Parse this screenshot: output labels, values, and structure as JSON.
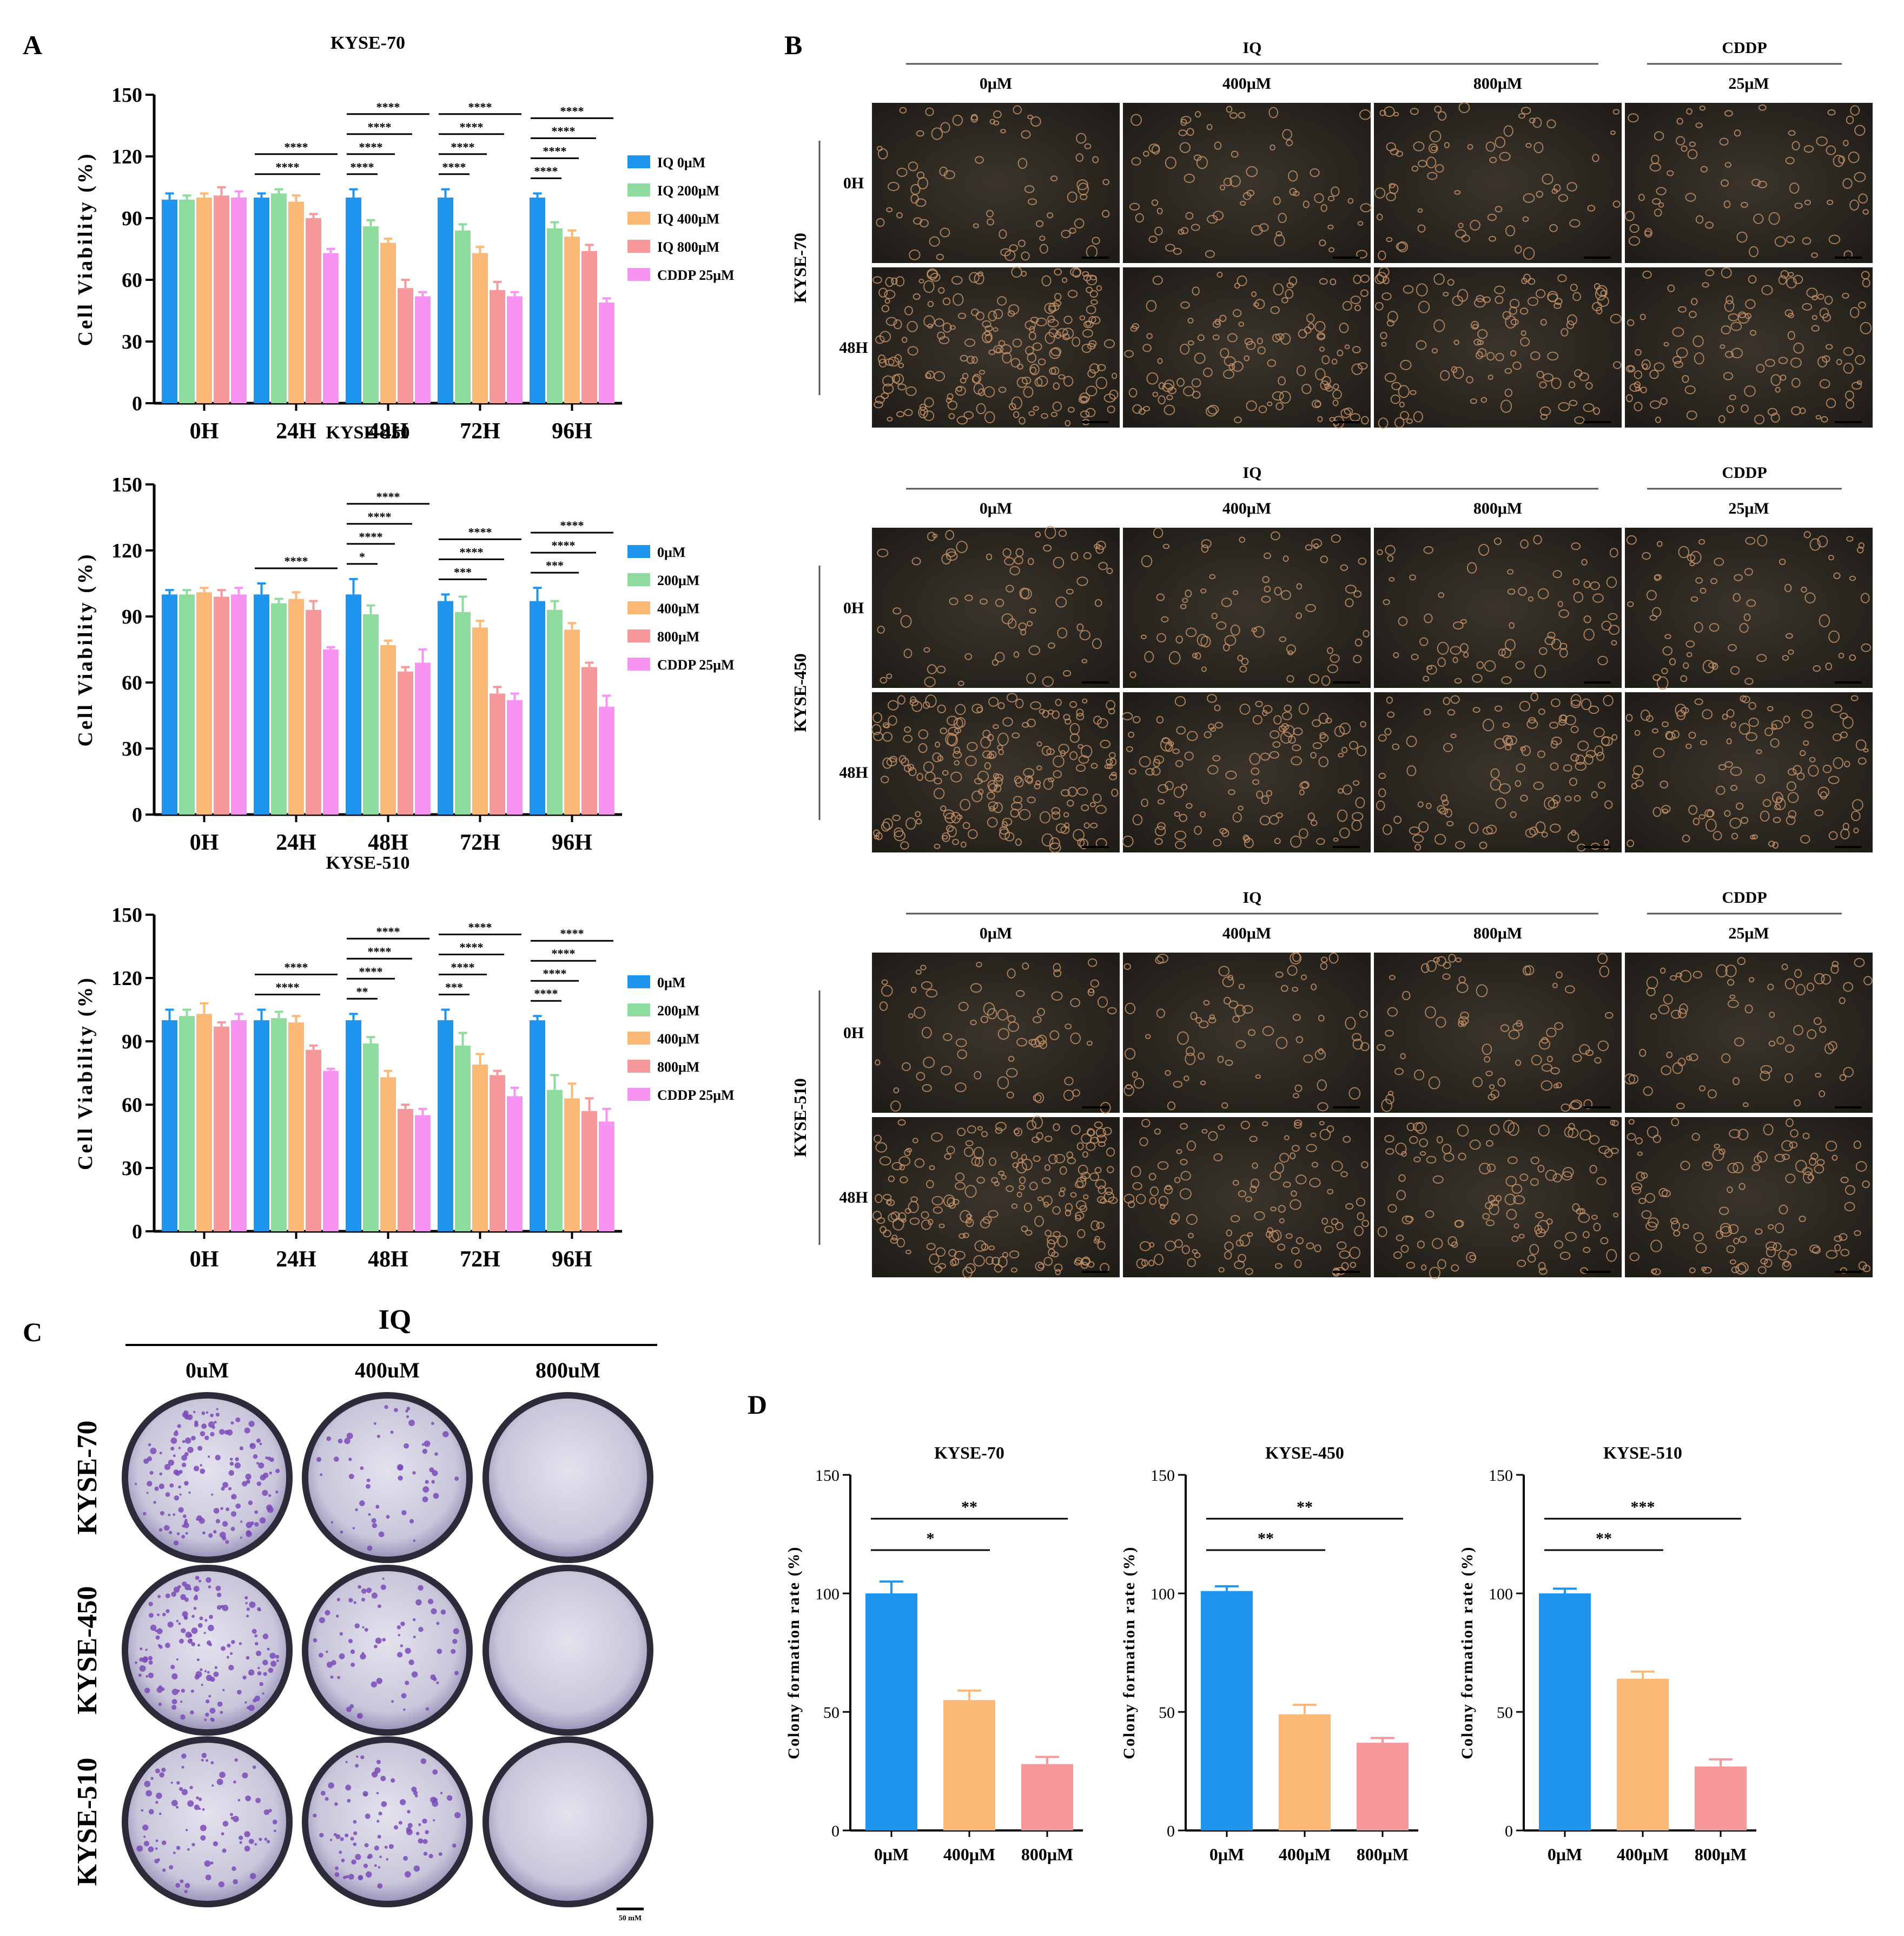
{
  "panel_letters": {
    "a": "A",
    "b": "B",
    "c": "C",
    "d": "D"
  },
  "colors": {
    "c0": "#1E96F0",
    "c200": "#8EDB9E",
    "c400": "#FBB978",
    "c800": "#F7999C",
    "cddp": "#F793F2",
    "micrograph_bg": "#2A2620",
    "cell_color": "#C8946A",
    "crystal_violet": "#7B4AB8"
  },
  "panel_b": {
    "group_iq": "IQ",
    "group_cddp": "CDDP",
    "conditions": [
      "0μM",
      "400μM",
      "800μM",
      "25μM"
    ],
    "times": [
      "0H",
      "48H"
    ],
    "cell_lines": [
      "KYSE-70",
      "KYSE-450",
      "KYSE-510"
    ]
  },
  "panel_c": {
    "title": "IQ",
    "columns": [
      "0uM",
      "400uM",
      "800uM"
    ],
    "rows": [
      "KYSE-70",
      "KYSE-450",
      "KYSE-510"
    ],
    "scale_bar_label": "50 mM",
    "colony_density": [
      [
        150,
        55,
        0
      ],
      [
        150,
        70,
        0
      ],
      [
        90,
        90,
        0
      ]
    ]
  },
  "chart_data": [
    {
      "type": "bar",
      "title": "KYSE-70",
      "xlabel": "",
      "ylabel": "Cell Viability (%)",
      "ylim": [
        0,
        150
      ],
      "yticks": [
        0,
        30,
        60,
        90,
        120,
        150
      ],
      "categories": [
        "0H",
        "24H",
        "48H",
        "72H",
        "96H"
      ],
      "legend_position": "right",
      "series": [
        {
          "name": "IQ 0μM",
          "values": [
            99,
            100,
            100,
            100,
            100
          ],
          "errors": [
            3,
            2,
            4,
            4,
            2
          ]
        },
        {
          "name": "IQ 200μM",
          "values": [
            99,
            102,
            86,
            84,
            85
          ],
          "errors": [
            2,
            2,
            3,
            3,
            3
          ]
        },
        {
          "name": "IQ 400μM",
          "values": [
            100,
            98,
            78,
            73,
            81
          ],
          "errors": [
            2,
            3,
            2,
            3,
            3
          ]
        },
        {
          "name": "IQ 800μM",
          "values": [
            101,
            90,
            56,
            55,
            74
          ],
          "errors": [
            4,
            2,
            4,
            4,
            3
          ]
        },
        {
          "name": "CDDP 25μM",
          "values": [
            100,
            73,
            52,
            52,
            49
          ],
          "errors": [
            3,
            2,
            2,
            2,
            2
          ]
        }
      ],
      "significance": [
        {
          "cat": 1,
          "from": 0,
          "to": 3,
          "label": "****"
        },
        {
          "cat": 1,
          "from": 0,
          "to": 4,
          "label": "****"
        },
        {
          "cat": 2,
          "from": 0,
          "to": 1,
          "label": "****"
        },
        {
          "cat": 2,
          "from": 0,
          "to": 2,
          "label": "****"
        },
        {
          "cat": 2,
          "from": 0,
          "to": 3,
          "label": "****"
        },
        {
          "cat": 2,
          "from": 0,
          "to": 4,
          "label": "****"
        },
        {
          "cat": 3,
          "from": 0,
          "to": 1,
          "label": "****"
        },
        {
          "cat": 3,
          "from": 0,
          "to": 2,
          "label": "****"
        },
        {
          "cat": 3,
          "from": 0,
          "to": 3,
          "label": "****"
        },
        {
          "cat": 3,
          "from": 0,
          "to": 4,
          "label": "****"
        },
        {
          "cat": 4,
          "from": 0,
          "to": 1,
          "label": "****"
        },
        {
          "cat": 4,
          "from": 0,
          "to": 2,
          "label": "****"
        },
        {
          "cat": 4,
          "from": 0,
          "to": 3,
          "label": "****"
        },
        {
          "cat": 4,
          "from": 0,
          "to": 4,
          "label": "****"
        }
      ]
    },
    {
      "type": "bar",
      "title": "KYSE-450",
      "xlabel": "",
      "ylabel": "Cell Viability (%)",
      "ylim": [
        0,
        150
      ],
      "yticks": [
        0,
        30,
        60,
        90,
        120,
        150
      ],
      "categories": [
        "0H",
        "24H",
        "48H",
        "72H",
        "96H"
      ],
      "legend_position": "right",
      "series": [
        {
          "name": "0μM",
          "values": [
            100,
            100,
            100,
            97,
            97
          ],
          "errors": [
            2,
            5,
            7,
            3,
            6
          ]
        },
        {
          "name": "200μM",
          "values": [
            100,
            96,
            91,
            92,
            93
          ],
          "errors": [
            2,
            2,
            4,
            7,
            4
          ]
        },
        {
          "name": "400μM",
          "values": [
            101,
            98,
            77,
            85,
            84
          ],
          "errors": [
            2,
            3,
            2,
            3,
            3
          ]
        },
        {
          "name": "800μM",
          "values": [
            99,
            93,
            65,
            55,
            67
          ],
          "errors": [
            3,
            4,
            2,
            3,
            2
          ]
        },
        {
          "name": "CDDP 25μM",
          "values": [
            100,
            75,
            69,
            52,
            49
          ],
          "errors": [
            3,
            1,
            6,
            3,
            5
          ]
        }
      ],
      "significance": [
        {
          "cat": 1,
          "from": 0,
          "to": 4,
          "label": "****"
        },
        {
          "cat": 2,
          "from": 0,
          "to": 1,
          "label": "*"
        },
        {
          "cat": 2,
          "from": 0,
          "to": 2,
          "label": "****"
        },
        {
          "cat": 2,
          "from": 0,
          "to": 3,
          "label": "****"
        },
        {
          "cat": 2,
          "from": 0,
          "to": 4,
          "label": "****"
        },
        {
          "cat": 3,
          "from": 0,
          "to": 2,
          "label": "***"
        },
        {
          "cat": 3,
          "from": 0,
          "to": 3,
          "label": "****"
        },
        {
          "cat": 3,
          "from": 0,
          "to": 4,
          "label": "****"
        },
        {
          "cat": 4,
          "from": 0,
          "to": 2,
          "label": "***"
        },
        {
          "cat": 4,
          "from": 0,
          "to": 3,
          "label": "****"
        },
        {
          "cat": 4,
          "from": 0,
          "to": 4,
          "label": "****"
        }
      ]
    },
    {
      "type": "bar",
      "title": "KYSE-510",
      "xlabel": "",
      "ylabel": "Cell Viability (%)",
      "ylim": [
        0,
        150
      ],
      "yticks": [
        0,
        30,
        60,
        90,
        120,
        150
      ],
      "categories": [
        "0H",
        "24H",
        "48H",
        "72H",
        "96H"
      ],
      "legend_position": "right",
      "series": [
        {
          "name": "0μM",
          "values": [
            100,
            100,
            100,
            100,
            100
          ],
          "errors": [
            5,
            5,
            3,
            5,
            2
          ]
        },
        {
          "name": "200μM",
          "values": [
            102,
            101,
            89,
            88,
            67
          ],
          "errors": [
            3,
            3,
            3,
            6,
            7
          ]
        },
        {
          "name": "400μM",
          "values": [
            103,
            99,
            73,
            79,
            63
          ],
          "errors": [
            5,
            3,
            3,
            5,
            7
          ]
        },
        {
          "name": "800μM",
          "values": [
            97,
            86,
            58,
            74,
            57
          ],
          "errors": [
            2,
            2,
            2,
            2,
            6
          ]
        },
        {
          "name": "CDDP 25μM",
          "values": [
            100,
            76,
            55,
            64,
            52
          ],
          "errors": [
            3,
            1,
            3,
            4,
            6
          ]
        }
      ],
      "significance": [
        {
          "cat": 1,
          "from": 0,
          "to": 3,
          "label": "****"
        },
        {
          "cat": 1,
          "from": 0,
          "to": 4,
          "label": "****"
        },
        {
          "cat": 2,
          "from": 0,
          "to": 1,
          "label": "**"
        },
        {
          "cat": 2,
          "from": 0,
          "to": 2,
          "label": "****"
        },
        {
          "cat": 2,
          "from": 0,
          "to": 3,
          "label": "****"
        },
        {
          "cat": 2,
          "from": 0,
          "to": 4,
          "label": "****"
        },
        {
          "cat": 3,
          "from": 0,
          "to": 1,
          "label": "***"
        },
        {
          "cat": 3,
          "from": 0,
          "to": 2,
          "label": "****"
        },
        {
          "cat": 3,
          "from": 0,
          "to": 3,
          "label": "****"
        },
        {
          "cat": 3,
          "from": 0,
          "to": 4,
          "label": "****"
        },
        {
          "cat": 4,
          "from": 0,
          "to": 1,
          "label": "****"
        },
        {
          "cat": 4,
          "from": 0,
          "to": 2,
          "label": "****"
        },
        {
          "cat": 4,
          "from": 0,
          "to": 3,
          "label": "****"
        },
        {
          "cat": 4,
          "from": 0,
          "to": 4,
          "label": "****"
        }
      ]
    },
    {
      "type": "bar",
      "title": "KYSE-70",
      "xlabel": "",
      "ylabel": "Colony formation rate (%)",
      "ylim": [
        0,
        150
      ],
      "yticks": [
        0,
        50,
        100,
        150
      ],
      "categories": [
        "0μM",
        "400μM",
        "800μM"
      ],
      "values": [
        100,
        55,
        28
      ],
      "errors": [
        5,
        4,
        3
      ],
      "significance": [
        {
          "from": 0,
          "to": 1,
          "label": "*"
        },
        {
          "from": 0,
          "to": 2,
          "label": "**"
        }
      ]
    },
    {
      "type": "bar",
      "title": "KYSE-450",
      "xlabel": "",
      "ylabel": "Colony formation rate (%)",
      "ylim": [
        0,
        150
      ],
      "yticks": [
        0,
        50,
        100,
        150
      ],
      "categories": [
        "0μM",
        "400μM",
        "800μM"
      ],
      "values": [
        101,
        49,
        37
      ],
      "errors": [
        2,
        4,
        2
      ],
      "significance": [
        {
          "from": 0,
          "to": 1,
          "label": "**"
        },
        {
          "from": 0,
          "to": 2,
          "label": "**"
        }
      ]
    },
    {
      "type": "bar",
      "title": "KYSE-510",
      "xlabel": "",
      "ylabel": "Colony formation rate (%)",
      "ylim": [
        0,
        150
      ],
      "yticks": [
        0,
        50,
        100,
        150
      ],
      "categories": [
        "0μM",
        "400μM",
        "800μM"
      ],
      "values": [
        100,
        64,
        27
      ],
      "errors": [
        2,
        3,
        3
      ],
      "significance": [
        {
          "from": 0,
          "to": 1,
          "label": "**"
        },
        {
          "from": 0,
          "to": 2,
          "label": "***"
        }
      ]
    }
  ]
}
